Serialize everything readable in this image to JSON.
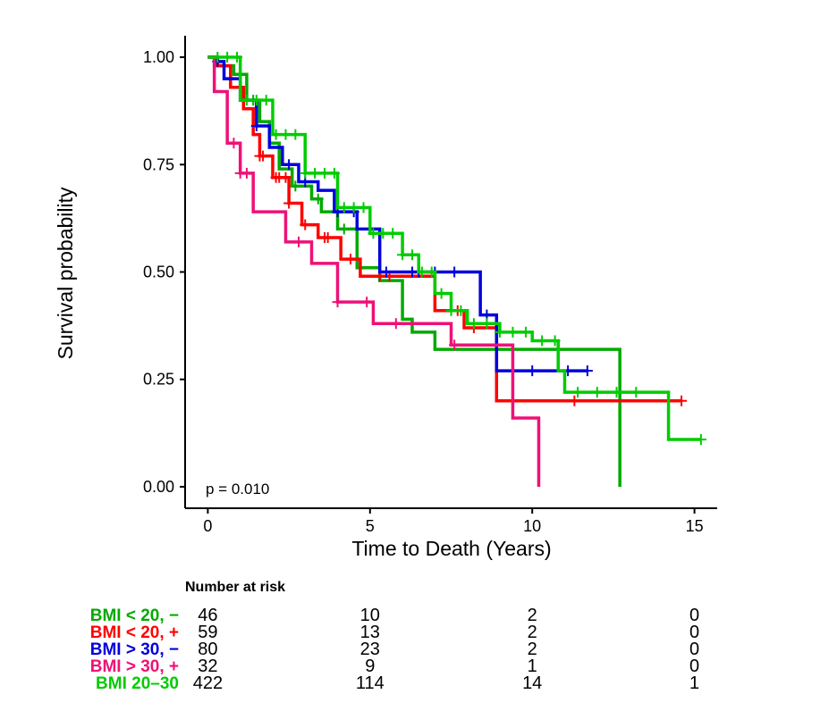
{
  "chart_data": {
    "type": "line",
    "subtype": "kaplan-meier",
    "title": "",
    "xlabel": "Time to Death (Years)",
    "ylabel": "Survival probability",
    "xlim": [
      -0.7,
      15.7
    ],
    "ylim": [
      -0.05,
      1.05
    ],
    "x_ticks": [
      0,
      5,
      10,
      15
    ],
    "y_ticks": [
      0.0,
      0.25,
      0.5,
      0.75,
      1.0
    ],
    "x_tick_labels": [
      "0",
      "5",
      "10",
      "15"
    ],
    "y_tick_labels": [
      "0.00",
      "0.25",
      "0.50",
      "0.75",
      "1.00"
    ],
    "grid": false,
    "annotation": "p = 0.010",
    "series": [
      {
        "name": "BMI < 20, −",
        "color": "#00AA00",
        "steps": [
          [
            0,
            1.0
          ],
          [
            0.2,
            0.98
          ],
          [
            0.8,
            0.96
          ],
          [
            1.2,
            0.9
          ],
          [
            1.6,
            0.85
          ],
          [
            1.9,
            0.8
          ],
          [
            2.2,
            0.74
          ],
          [
            2.6,
            0.7
          ],
          [
            3.2,
            0.67
          ],
          [
            3.5,
            0.64
          ],
          [
            4.0,
            0.6
          ],
          [
            4.6,
            0.54
          ],
          [
            4.6,
            0.52
          ],
          [
            4.6,
            0.51
          ],
          [
            5.3,
            0.48
          ],
          [
            6.0,
            0.39
          ],
          [
            6.3,
            0.36
          ],
          [
            7.0,
            0.32
          ],
          [
            12.7,
            0.0
          ]
        ],
        "censor_x": [
          1.0,
          1.4,
          2.7,
          3.4,
          4.2
        ]
      },
      {
        "name": "BMI < 20, +",
        "color": "#FF0000",
        "steps": [
          [
            0,
            1.0
          ],
          [
            0.3,
            0.98
          ],
          [
            0.7,
            0.93
          ],
          [
            1.1,
            0.88
          ],
          [
            1.4,
            0.82
          ],
          [
            1.6,
            0.77
          ],
          [
            2.0,
            0.72
          ],
          [
            2.5,
            0.66
          ],
          [
            2.9,
            0.61
          ],
          [
            3.4,
            0.58
          ],
          [
            4.1,
            0.53
          ],
          [
            4.7,
            0.49
          ],
          [
            7.0,
            0.41
          ],
          [
            7.9,
            0.37
          ],
          [
            8.9,
            0.2
          ],
          [
            14.6,
            0.2
          ]
        ],
        "censor_x": [
          1.6,
          1.7,
          2.1,
          2.2,
          2.4,
          2.5,
          3.0,
          3.6,
          3.7,
          4.4,
          5.3,
          5.6,
          7.7,
          8.2,
          11.3,
          14.6
        ]
      },
      {
        "name": "BMI > 30, −",
        "color": "#0000DD",
        "steps": [
          [
            0,
            1.0
          ],
          [
            0.3,
            0.99
          ],
          [
            0.5,
            0.95
          ],
          [
            1.0,
            0.9
          ],
          [
            1.5,
            0.84
          ],
          [
            1.9,
            0.79
          ],
          [
            2.3,
            0.75
          ],
          [
            2.8,
            0.71
          ],
          [
            3.4,
            0.69
          ],
          [
            3.9,
            0.64
          ],
          [
            4.6,
            0.6
          ],
          [
            5.3,
            0.5
          ],
          [
            8.4,
            0.4
          ],
          [
            8.9,
            0.27
          ],
          [
            11.7,
            0.27
          ]
        ],
        "censor_x": [
          0.3,
          1.5,
          2.5,
          3.0,
          4.0,
          4.5,
          5.0,
          5.5,
          6.3,
          6.5,
          7.0,
          7.6,
          8.6,
          10.0,
          11.1,
          11.7
        ]
      },
      {
        "name": "BMI > 30, +",
        "color": "#EE1177",
        "steps": [
          [
            0,
            1.0
          ],
          [
            0.2,
            0.92
          ],
          [
            0.6,
            0.8
          ],
          [
            1.0,
            0.73
          ],
          [
            1.4,
            0.64
          ],
          [
            2.4,
            0.57
          ],
          [
            3.2,
            0.52
          ],
          [
            4.0,
            0.43
          ],
          [
            5.1,
            0.38
          ],
          [
            7.5,
            0.33
          ],
          [
            9.4,
            0.16
          ],
          [
            10.2,
            0.0
          ]
        ],
        "censor_x": [
          0.8,
          1.0,
          1.2,
          2.8,
          4.0,
          4.9,
          5.8,
          7.6
        ]
      },
      {
        "name": "BMI 20–30",
        "color": "#00CC00",
        "steps": [
          [
            0,
            1.0
          ],
          [
            1.0,
            0.9
          ],
          [
            2.0,
            0.82
          ],
          [
            3.0,
            0.73
          ],
          [
            4.0,
            0.65
          ],
          [
            5.0,
            0.59
          ],
          [
            6.0,
            0.54
          ],
          [
            6.5,
            0.5
          ],
          [
            7.0,
            0.45
          ],
          [
            7.5,
            0.41
          ],
          [
            8.0,
            0.38
          ],
          [
            9.0,
            0.36
          ],
          [
            10.0,
            0.34
          ],
          [
            10.8,
            0.27
          ],
          [
            11.0,
            0.22
          ],
          [
            14.2,
            0.11
          ],
          [
            15.2,
            0.11
          ]
        ],
        "censor_x": [
          0.3,
          0.6,
          0.9,
          1.2,
          1.5,
          1.8,
          2.1,
          2.4,
          2.7,
          3.0,
          3.3,
          3.6,
          3.9,
          4.2,
          4.5,
          4.8,
          5.1,
          5.4,
          5.7,
          6.0,
          6.3,
          6.6,
          6.9,
          7.2,
          7.5,
          7.8,
          8.2,
          8.6,
          9.0,
          9.4,
          9.8,
          10.3,
          10.7,
          11.4,
          12.0,
          12.6,
          13.2,
          15.2
        ]
      }
    ],
    "risk_table": {
      "title": "Number at risk",
      "times": [
        0,
        5,
        10,
        15
      ],
      "rows": [
        {
          "label": "BMI < 20, −",
          "color": "#00AA00",
          "counts": [
            "46",
            "10",
            "2",
            "0"
          ]
        },
        {
          "label": "BMI < 20, +",
          "color": "#FF0000",
          "counts": [
            "59",
            "13",
            "2",
            "0"
          ]
        },
        {
          "label": "BMI > 30, −",
          "color": "#0000DD",
          "counts": [
            "80",
            "23",
            "2",
            "0"
          ]
        },
        {
          "label": "BMI > 30, +",
          "color": "#EE1177",
          "counts": [
            "32",
            "9",
            "1",
            "0"
          ]
        },
        {
          "label": "BMI 20–30",
          "color": "#00CC00",
          "counts": [
            "422",
            "114",
            "14",
            "1"
          ]
        }
      ]
    }
  }
}
